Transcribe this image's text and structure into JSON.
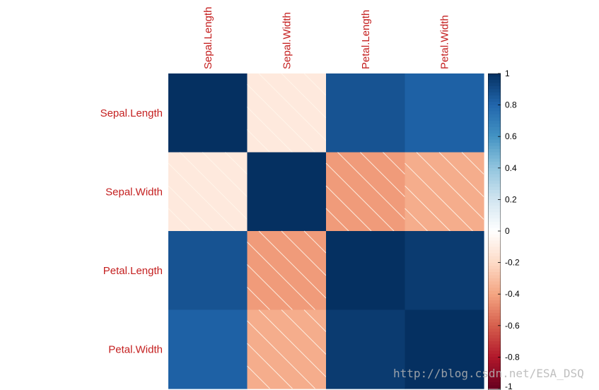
{
  "chart_data": {
    "type": "heatmap",
    "method": "correlation matrix (color)",
    "row_labels": [
      "Sepal.Length",
      "Sepal.Width",
      "Petal.Length",
      "Petal.Width"
    ],
    "col_labels": [
      "Sepal.Length",
      "Sepal.Width",
      "Petal.Length",
      "Petal.Width"
    ],
    "values": [
      [
        1.0,
        -0.12,
        0.87,
        0.82
      ],
      [
        -0.12,
        1.0,
        -0.43,
        -0.37
      ],
      [
        0.87,
        -0.43,
        1.0,
        0.96
      ],
      [
        0.82,
        -0.37,
        0.96,
        1.0
      ]
    ],
    "negative_cells_hatched": true,
    "color_scale": {
      "range": [
        -1,
        1
      ],
      "ticks": [
        "1",
        "0.8",
        "0.6",
        "0.4",
        "0.2",
        "0",
        "-0.2",
        "-0.4",
        "-0.6",
        "-0.8",
        "-1"
      ],
      "tick_values": [
        1,
        0.8,
        0.6,
        0.4,
        0.2,
        0,
        -0.2,
        -0.4,
        -0.6,
        -0.8,
        -1
      ],
      "palette": [
        "#67001F",
        "#B2182B",
        "#D6604D",
        "#F4A582",
        "#FDDBC7",
        "#FFFFFF",
        "#D1E5F0",
        "#92C5DE",
        "#4393C3",
        "#2166AC",
        "#053061"
      ],
      "legend_position": "right"
    },
    "label_color": "#c41f1f",
    "title": "",
    "xlabel": "",
    "ylabel": ""
  },
  "watermark": "http://blog.csdn.net/ESA_DSQ"
}
